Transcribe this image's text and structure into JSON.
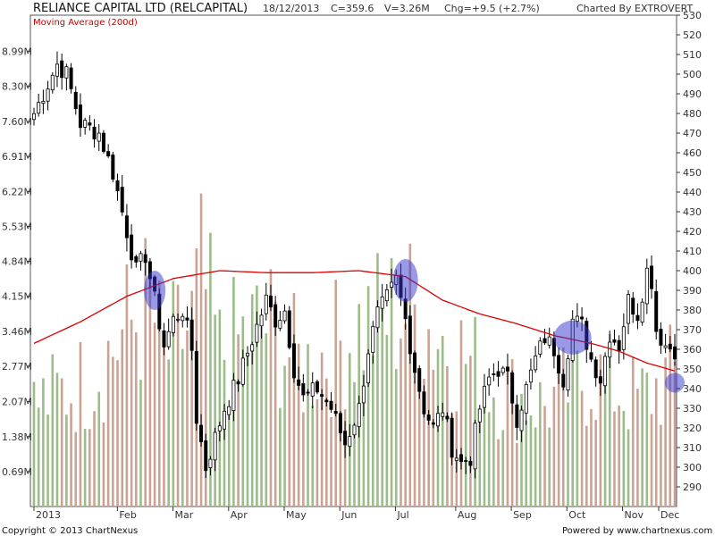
{
  "header": {
    "title": "RELIANCE CAPITAL LTD (RELCAPITAL)",
    "date": "18/12/2013",
    "close": "C=359.6",
    "volume": "V=3.26M",
    "change": "Chg=+9.5 (+2.7%)",
    "charted_by": "Charted By EXTROVERT"
  },
  "footer": {
    "copyright": "Copyright © 2013 ChartNexus",
    "powered_by": "Powered by www.chartnexus.com"
  },
  "chart_data": {
    "type": "candlestick",
    "title": "RELIANCE CAPITAL LTD (RELCAPITAL)",
    "legend": [
      {
        "label": "Moving Average (200d)",
        "color": "#dd0000",
        "placement": "top-left"
      }
    ],
    "price_axis": {
      "side": "right",
      "range": [
        280,
        530
      ],
      "ticks": [
        "530",
        "520",
        "510",
        "500",
        "490",
        "480",
        "470",
        "460",
        "450",
        "440",
        "430",
        "420",
        "410",
        "400",
        "390",
        "380",
        "370",
        "360",
        "350",
        "340",
        "330",
        "320",
        "310",
        "300",
        "290"
      ]
    },
    "volume_axis": {
      "side": "left",
      "range": [
        0,
        9.7
      ],
      "unit": "M",
      "ticks": [
        "8.99M",
        "8.30M",
        "7.60M",
        "6.91M",
        "6.22M",
        "5.53M",
        "4.84M",
        "4.15M",
        "3.46M",
        "2.77M",
        "2.07M",
        "1.38M",
        "0.69M"
      ]
    },
    "x_axis": {
      "labels": [
        "2013",
        "Feb",
        "Mar",
        "Apr",
        "May",
        "Jun",
        "Jul",
        "Aug",
        "Sep",
        "Oct",
        "Nov",
        "Dec"
      ]
    },
    "price_trend": [
      {
        "t": 0,
        "v": 480
      },
      {
        "t": 3,
        "v": 495
      },
      {
        "t": 5,
        "v": 505
      },
      {
        "t": 7,
        "v": 500
      },
      {
        "t": 10,
        "v": 475
      },
      {
        "t": 14,
        "v": 470
      },
      {
        "t": 17,
        "v": 450
      },
      {
        "t": 20,
        "v": 420
      },
      {
        "t": 22,
        "v": 400
      },
      {
        "t": 24,
        "v": 408
      },
      {
        "t": 26,
        "v": 385
      },
      {
        "t": 28,
        "v": 362
      },
      {
        "t": 30,
        "v": 375
      },
      {
        "t": 32,
        "v": 380
      },
      {
        "t": 34,
        "v": 360
      },
      {
        "t": 35,
        "v": 325
      },
      {
        "t": 37,
        "v": 300
      },
      {
        "t": 39,
        "v": 315
      },
      {
        "t": 41,
        "v": 330
      },
      {
        "t": 44,
        "v": 345
      },
      {
        "t": 47,
        "v": 365
      },
      {
        "t": 50,
        "v": 385
      },
      {
        "t": 52,
        "v": 375
      },
      {
        "t": 54,
        "v": 380
      },
      {
        "t": 56,
        "v": 350
      },
      {
        "t": 58,
        "v": 335
      },
      {
        "t": 61,
        "v": 340
      },
      {
        "t": 64,
        "v": 330
      },
      {
        "t": 67,
        "v": 312
      },
      {
        "t": 70,
        "v": 330
      },
      {
        "t": 72,
        "v": 360
      },
      {
        "t": 74,
        "v": 378
      },
      {
        "t": 76,
        "v": 386
      },
      {
        "t": 78,
        "v": 395
      },
      {
        "t": 80,
        "v": 375
      },
      {
        "t": 82,
        "v": 350
      },
      {
        "t": 84,
        "v": 330
      },
      {
        "t": 86,
        "v": 320
      },
      {
        "t": 88,
        "v": 330
      },
      {
        "t": 90,
        "v": 310
      },
      {
        "t": 92,
        "v": 302
      },
      {
        "t": 94,
        "v": 305
      },
      {
        "t": 96,
        "v": 330
      },
      {
        "t": 98,
        "v": 345
      },
      {
        "t": 100,
        "v": 350
      },
      {
        "t": 102,
        "v": 345
      },
      {
        "t": 104,
        "v": 325
      },
      {
        "t": 106,
        "v": 340
      },
      {
        "t": 108,
        "v": 355
      },
      {
        "t": 110,
        "v": 366
      },
      {
        "t": 112,
        "v": 360
      },
      {
        "t": 114,
        "v": 345
      },
      {
        "t": 116,
        "v": 375
      },
      {
        "t": 118,
        "v": 372
      },
      {
        "t": 120,
        "v": 355
      },
      {
        "t": 122,
        "v": 345
      },
      {
        "t": 124,
        "v": 368
      },
      {
        "t": 126,
        "v": 362
      },
      {
        "t": 128,
        "v": 385
      },
      {
        "t": 130,
        "v": 378
      },
      {
        "t": 132,
        "v": 400
      },
      {
        "t": 133,
        "v": 395
      },
      {
        "t": 134,
        "v": 370
      },
      {
        "t": 136,
        "v": 362
      },
      {
        "t": 138,
        "v": 360
      }
    ],
    "moving_average_200d": [
      {
        "t": 0,
        "v": 363
      },
      {
        "t": 10,
        "v": 374
      },
      {
        "t": 20,
        "v": 387
      },
      {
        "t": 30,
        "v": 396
      },
      {
        "t": 40,
        "v": 400
      },
      {
        "t": 50,
        "v": 399
      },
      {
        "t": 60,
        "v": 399
      },
      {
        "t": 70,
        "v": 400
      },
      {
        "t": 80,
        "v": 397
      },
      {
        "t": 88,
        "v": 385
      },
      {
        "t": 96,
        "v": 378
      },
      {
        "t": 104,
        "v": 373
      },
      {
        "t": 112,
        "v": 367
      },
      {
        "t": 120,
        "v": 363
      },
      {
        "t": 126,
        "v": 359
      },
      {
        "t": 132,
        "v": 353
      },
      {
        "t": 138,
        "v": 349
      }
    ],
    "volume_profile": [
      {
        "t": 0,
        "v": 2.0
      },
      {
        "t": 12,
        "v": 2.5
      },
      {
        "t": 20,
        "v": 3.5
      },
      {
        "t": 25,
        "v": 4.0
      },
      {
        "t": 28,
        "v": 2.9
      },
      {
        "t": 34,
        "v": 3.6
      },
      {
        "t": 36,
        "v": 4.5
      },
      {
        "t": 40,
        "v": 3.0
      },
      {
        "t": 50,
        "v": 3.6
      },
      {
        "t": 58,
        "v": 2.7
      },
      {
        "t": 70,
        "v": 3.5
      },
      {
        "t": 80,
        "v": 3.9
      },
      {
        "t": 90,
        "v": 3.2
      },
      {
        "t": 100,
        "v": 2.3
      },
      {
        "t": 110,
        "v": 2.0
      },
      {
        "t": 120,
        "v": 2.6
      },
      {
        "t": 130,
        "v": 2.1
      },
      {
        "t": 138,
        "v": 2.6
      }
    ],
    "volume_colors": {
      "up": "#9cbd8a",
      "down": "#cba394"
    },
    "candle_colors": {
      "up": "#ffffff",
      "down": "#000000",
      "outline": "#000000"
    },
    "highlights": [
      {
        "t": 26,
        "v": 390,
        "color": "#3333cc"
      },
      {
        "t": 80,
        "v": 395,
        "color": "#3333cc"
      },
      {
        "t": 116,
        "v": 366,
        "color": "#3333cc"
      },
      {
        "t": 138,
        "v": 343,
        "color": "#3333cc"
      }
    ]
  }
}
